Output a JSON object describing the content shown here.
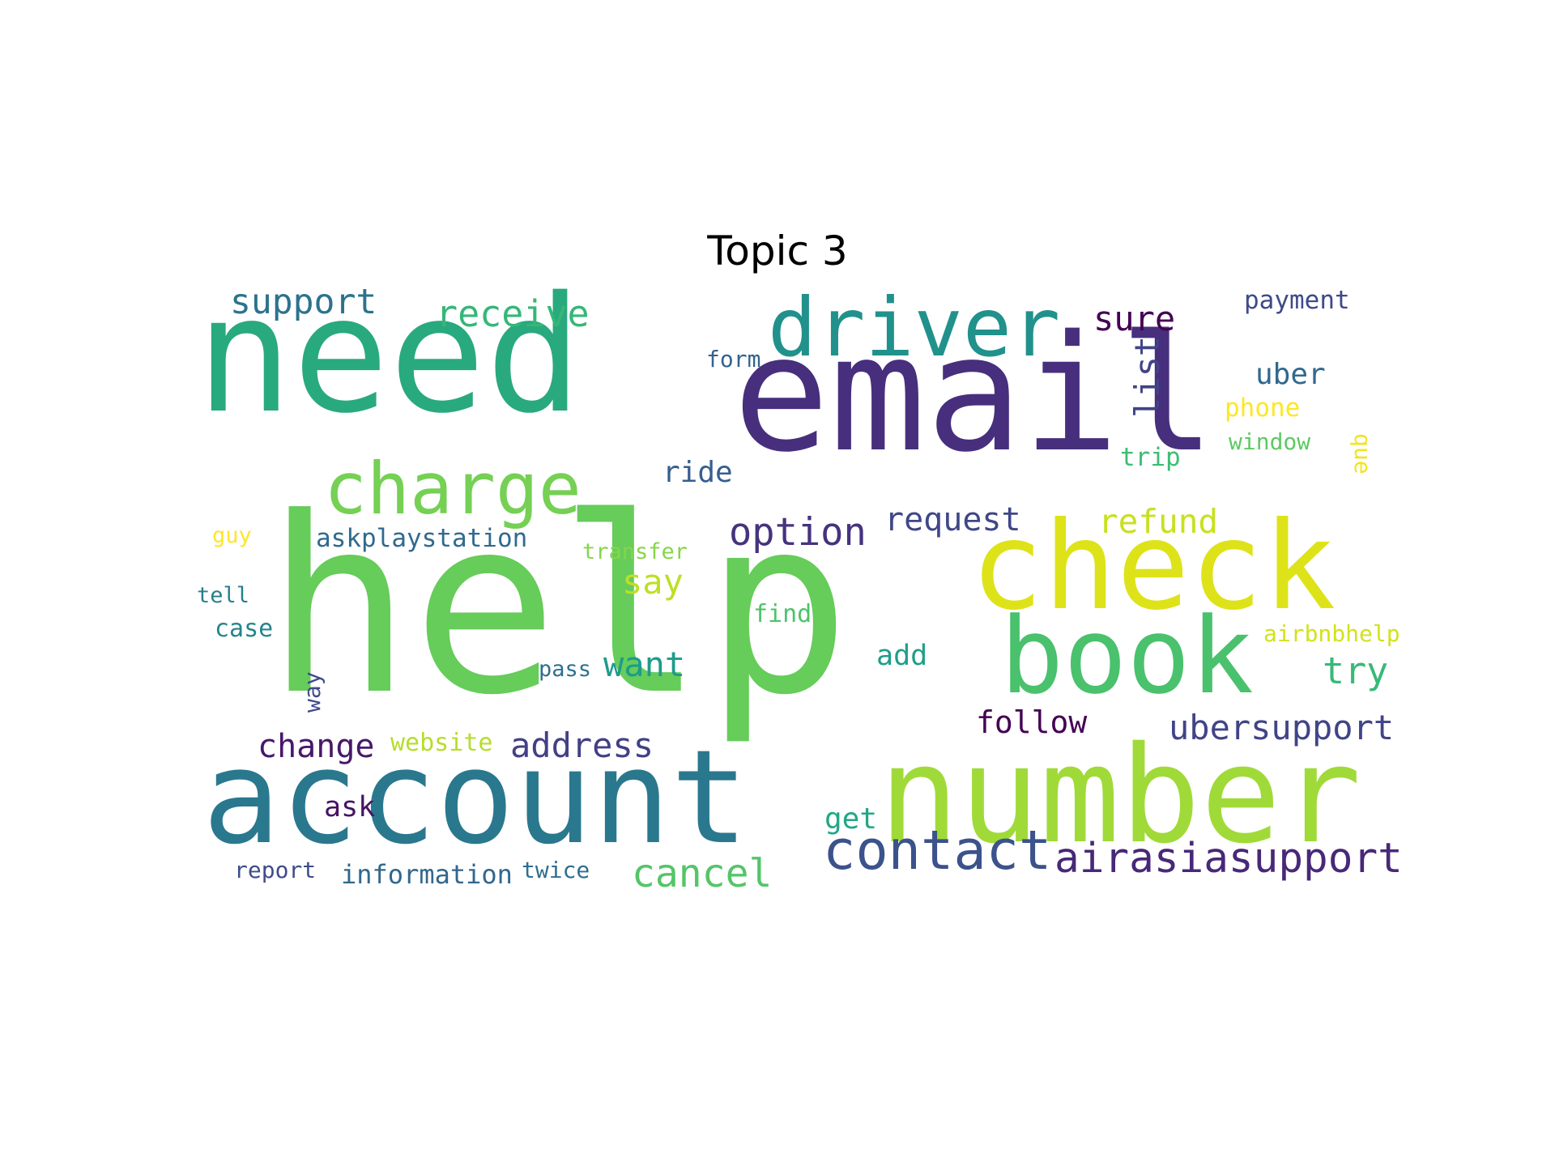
{
  "title": "Topic 3",
  "words": [
    {
      "text": "help",
      "color": "#66cc5a"
    },
    {
      "text": "email",
      "color": "#472f7d"
    },
    {
      "text": "need",
      "color": "#29a97e"
    },
    {
      "text": "account",
      "color": "#2a788e"
    },
    {
      "text": "number",
      "color": "#a0da39"
    },
    {
      "text": "check",
      "color": "#dde318"
    },
    {
      "text": "book",
      "color": "#4ac16d"
    },
    {
      "text": "driver",
      "color": "#21918c"
    },
    {
      "text": "charge",
      "color": "#75d054"
    },
    {
      "text": "contact",
      "color": "#3b528b"
    },
    {
      "text": "airasiasupport",
      "color": "#482878"
    },
    {
      "text": "support",
      "color": "#2c728e"
    },
    {
      "text": "receive",
      "color": "#35b779"
    },
    {
      "text": "sure",
      "color": "#440154"
    },
    {
      "text": "payment",
      "color": "#3e4a89"
    },
    {
      "text": "form",
      "color": "#33638d"
    },
    {
      "text": "list",
      "color": "#414487"
    },
    {
      "text": "uber",
      "color": "#31688e"
    },
    {
      "text": "phone",
      "color": "#fde725"
    },
    {
      "text": "window",
      "color": "#5ec962"
    },
    {
      "text": "trip",
      "color": "#3dbc74"
    },
    {
      "text": "que",
      "color": "#f1e51d"
    },
    {
      "text": "ride",
      "color": "#355f8d"
    },
    {
      "text": "refund",
      "color": "#c8e020"
    },
    {
      "text": "option",
      "color": "#46337e"
    },
    {
      "text": "request",
      "color": "#3f4788"
    },
    {
      "text": "say",
      "color": "#bddf26"
    },
    {
      "text": "guy",
      "color": "#fde725"
    },
    {
      "text": "askplaystation",
      "color": "#306a8e"
    },
    {
      "text": "transfer",
      "color": "#86d549"
    },
    {
      "text": "tell",
      "color": "#277f8e"
    },
    {
      "text": "case",
      "color": "#25848e"
    },
    {
      "text": "find",
      "color": "#4ec36b"
    },
    {
      "text": "airbnbhelp",
      "color": "#d2e21b"
    },
    {
      "text": "add",
      "color": "#1f9e89"
    },
    {
      "text": "try",
      "color": "#38b977"
    },
    {
      "text": "want",
      "color": "#1e9b8a"
    },
    {
      "text": "pass",
      "color": "#2d708e"
    },
    {
      "text": "way",
      "color": "#3f4a8a"
    },
    {
      "text": "follow",
      "color": "#440154"
    },
    {
      "text": "ubersupport",
      "color": "#414487"
    },
    {
      "text": "change",
      "color": "#48186a"
    },
    {
      "text": "website",
      "color": "#b5de2b"
    },
    {
      "text": "address",
      "color": "#424086"
    },
    {
      "text": "ask",
      "color": "#471365"
    },
    {
      "text": "get",
      "color": "#22a785"
    },
    {
      "text": "cancel",
      "color": "#54c568"
    },
    {
      "text": "report",
      "color": "#3e4c8a"
    },
    {
      "text": "information",
      "color": "#31678e"
    },
    {
      "text": "twice",
      "color": "#2e6f8e"
    }
  ]
}
